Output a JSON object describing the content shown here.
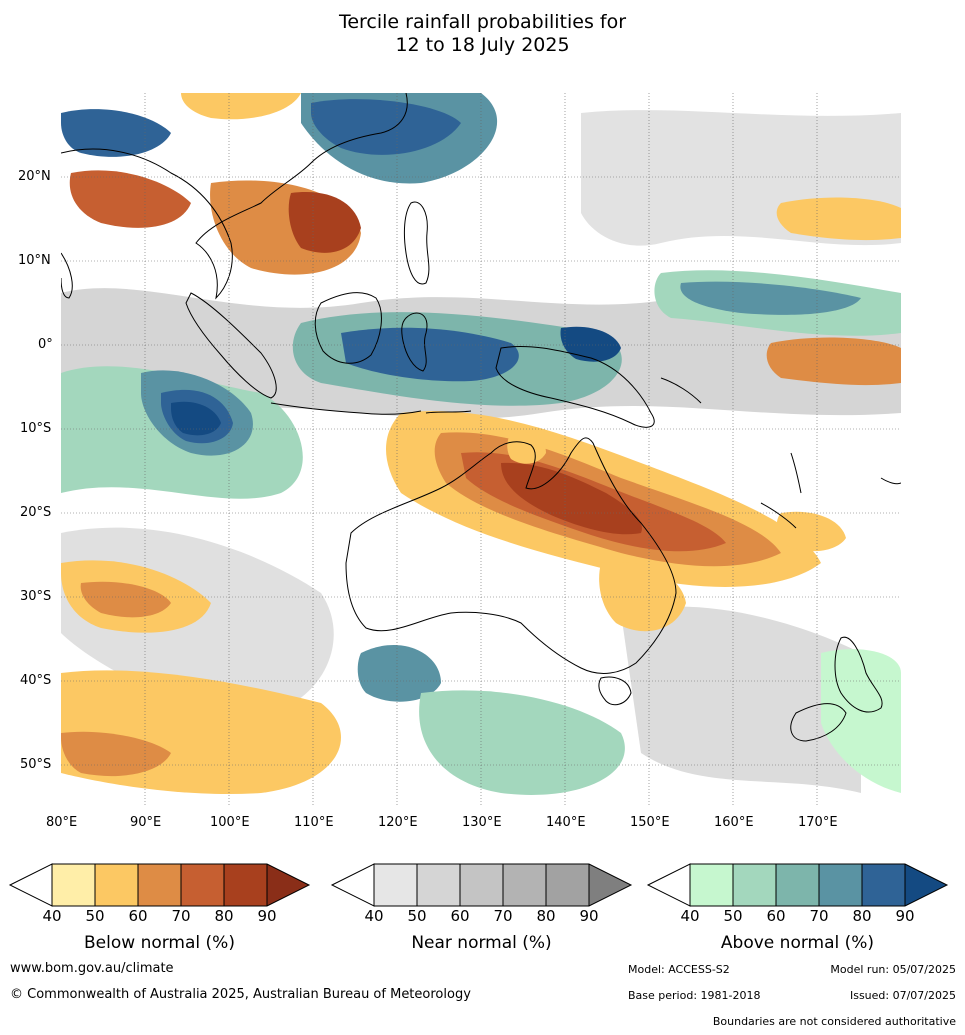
{
  "title": {
    "line1": "Tercile rainfall probabilities for",
    "line2": "12 to 18 July 2025"
  },
  "map": {
    "lon_labels": [
      "80°E",
      "90°E",
      "100°E",
      "110°E",
      "120°E",
      "130°E",
      "140°E",
      "150°E",
      "160°E",
      "170°E"
    ],
    "lat_labels": [
      "20°N",
      "10°N",
      "0°",
      "10°S",
      "20°S",
      "30°S",
      "40°S",
      "50°S"
    ],
    "lon_range": [
      80,
      180
    ],
    "lat_range": [
      -55,
      30
    ],
    "land_fill": "none",
    "coastline_color": "#000000",
    "grid": "dotted"
  },
  "colorbars": [
    {
      "label": "Below normal (%)",
      "ticks": [
        "40",
        "50",
        "60",
        "70",
        "80",
        "90"
      ],
      "colors": [
        "#ffeea8",
        "#fcc863",
        "#de8c45",
        "#c65f31",
        "#a8401e",
        "#8a2e18"
      ]
    },
    {
      "label": "Near normal (%)",
      "ticks": [
        "40",
        "50",
        "60",
        "70",
        "80",
        "90"
      ],
      "colors": [
        "#e6e6e6",
        "#d5d5d5",
        "#c4c4c4",
        "#b3b3b3",
        "#a2a2a2",
        "#7f7f7f"
      ]
    },
    {
      "label": "Above normal (%)",
      "ticks": [
        "40",
        "50",
        "60",
        "70",
        "80",
        "90"
      ],
      "colors": [
        "#c6f7cf",
        "#a3d7bd",
        "#7db5ab",
        "#5a93a3",
        "#2f6396",
        "#144a82"
      ]
    }
  ],
  "footer": {
    "website": "www.bom.gov.au/climate",
    "copyright": "© Commonwealth of Australia 2025, Australian Bureau of Meteorology",
    "model": "Model: ACCESS-S2",
    "model_run": "Model run: 05/07/2025",
    "base_period": "Base period: 1981-2018",
    "issued": "Issued: 07/07/2025",
    "disclaimer": "Boundaries are not considered authoritative"
  }
}
